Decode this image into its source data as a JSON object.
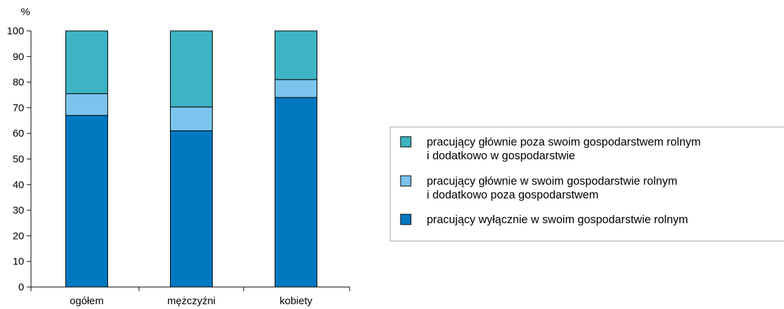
{
  "chart_data": {
    "type": "bar",
    "stacked": true,
    "ylabel": "%",
    "ylim": [
      0,
      100
    ],
    "yticks": [
      "0",
      "10",
      "20",
      "30",
      "40",
      "50",
      "60",
      "70",
      "80",
      "90",
      "100"
    ],
    "categories": [
      "ogółem",
      "mężczyźni",
      "kobiety"
    ],
    "grid": false,
    "legend_position": "right",
    "series": [
      {
        "name": "pracujący wyłącznie w swoim gospodarstwie rolnym",
        "color": "#0078c0",
        "values": [
          67,
          61,
          74
        ]
      },
      {
        "name": "pracujący głównie w swoim gospodarstwie rolnym\ni dodatkowo poza gospodarstwem",
        "color": "#7bc4ee",
        "values": [
          8.5,
          9.3,
          7
        ]
      },
      {
        "name": "pracujący głównie poza swoim gospodarstwem rolnym\ni dodatkowo w gospodarstwie",
        "color": "#3db4c4",
        "values": [
          24.5,
          29.7,
          19
        ]
      }
    ],
    "legend_order": [
      2,
      1,
      0
    ]
  }
}
